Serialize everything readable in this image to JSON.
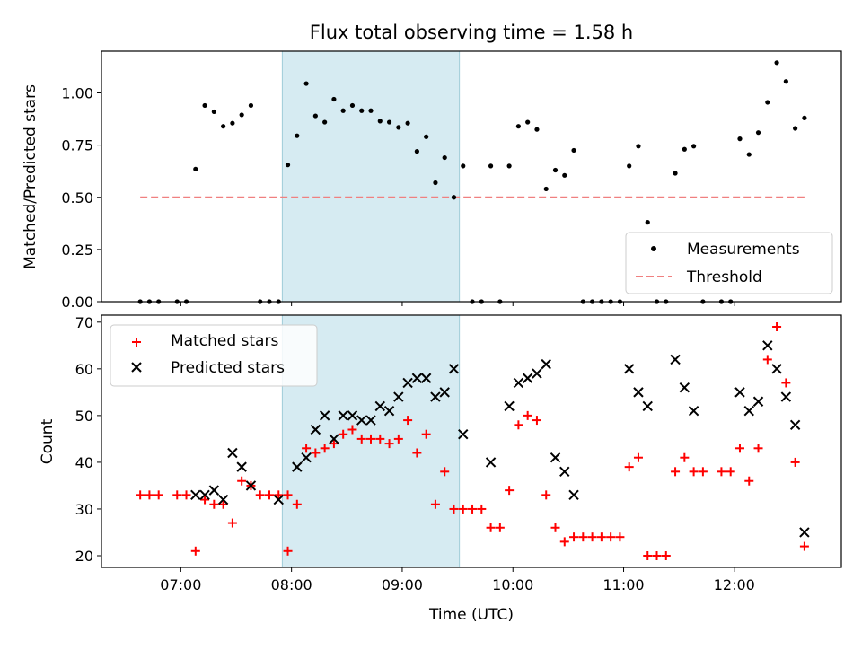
{
  "chart_data": [
    {
      "type": "scatter",
      "title": "Flux total observing time = 1.58 h",
      "xlabel": "",
      "ylabel": "Matched/Predicted stars",
      "ylim": [
        0,
        1.2
      ],
      "yticks": [
        "0.00",
        "0.25",
        "0.50",
        "0.75",
        "1.00"
      ],
      "shaded_band": [
        "07:55",
        "09:31"
      ],
      "threshold": 0.5,
      "legend": {
        "placement": "bottom-right",
        "entries": [
          "Measurements",
          "Threshold"
        ]
      },
      "series": [
        {
          "name": "Measurements",
          "color": "#000000",
          "points": [
            [
              "06:38",
              0.0
            ],
            [
              "06:43",
              0.0
            ],
            [
              "06:48",
              0.0
            ],
            [
              "06:58",
              0.0
            ],
            [
              "07:03",
              0.0
            ],
            [
              "07:08",
              0.635
            ],
            [
              "07:13",
              0.94
            ],
            [
              "07:18",
              0.91
            ],
            [
              "07:23",
              0.84
            ],
            [
              "07:28",
              0.855
            ],
            [
              "07:33",
              0.895
            ],
            [
              "07:38",
              0.94
            ],
            [
              "07:43",
              0.0
            ],
            [
              "07:48",
              0.0
            ],
            [
              "07:53",
              0.0
            ],
            [
              "07:58",
              0.655
            ],
            [
              "08:03",
              0.795
            ],
            [
              "08:08",
              1.045
            ],
            [
              "08:13",
              0.89
            ],
            [
              "08:18",
              0.86
            ],
            [
              "08:23",
              0.97
            ],
            [
              "08:28",
              0.915
            ],
            [
              "08:33",
              0.94
            ],
            [
              "08:38",
              0.915
            ],
            [
              "08:43",
              0.915
            ],
            [
              "08:48",
              0.865
            ],
            [
              "08:53",
              0.86
            ],
            [
              "08:58",
              0.835
            ],
            [
              "09:03",
              0.855
            ],
            [
              "09:08",
              0.72
            ],
            [
              "09:13",
              0.79
            ],
            [
              "09:18",
              0.57
            ],
            [
              "09:23",
              0.69
            ],
            [
              "09:28",
              0.5
            ],
            [
              "09:33",
              0.65
            ],
            [
              "09:38",
              0.0
            ],
            [
              "09:43",
              0.0
            ],
            [
              "09:48",
              0.65
            ],
            [
              "09:53",
              0.0
            ],
            [
              "09:58",
              0.65
            ],
            [
              "10:03",
              0.84
            ],
            [
              "10:08",
              0.86
            ],
            [
              "10:13",
              0.825
            ],
            [
              "10:18",
              0.54
            ],
            [
              "10:23",
              0.63
            ],
            [
              "10:28",
              0.605
            ],
            [
              "10:33",
              0.725
            ],
            [
              "10:38",
              0.0
            ],
            [
              "10:43",
              0.0
            ],
            [
              "10:48",
              0.0
            ],
            [
              "10:53",
              0.0
            ],
            [
              "10:58",
              0.0
            ],
            [
              "11:03",
              0.65
            ],
            [
              "11:08",
              0.745
            ],
            [
              "11:13",
              0.38
            ],
            [
              "11:18",
              0.0
            ],
            [
              "11:23",
              0.0
            ],
            [
              "11:28",
              0.615
            ],
            [
              "11:33",
              0.73
            ],
            [
              "11:38",
              0.745
            ],
            [
              "11:43",
              0.0
            ],
            [
              "11:53",
              0.0
            ],
            [
              "11:58",
              0.0
            ],
            [
              "12:03",
              0.78
            ],
            [
              "12:08",
              0.705
            ],
            [
              "12:13",
              0.81
            ],
            [
              "12:18",
              0.955
            ],
            [
              "12:23",
              1.145
            ],
            [
              "12:28",
              1.055
            ],
            [
              "12:33",
              0.83
            ],
            [
              "12:38",
              0.88
            ]
          ]
        },
        {
          "name": "Threshold",
          "color": "#f08080",
          "points": [
            [
              "06:38",
              0.5
            ],
            [
              "12:38",
              0.5
            ]
          ]
        }
      ]
    },
    {
      "type": "scatter",
      "title": "",
      "xlabel": "Time (UTC)",
      "ylabel": "Count",
      "ylim": [
        17.5,
        71.5
      ],
      "yticks": [
        "20",
        "30",
        "40",
        "50",
        "60",
        "70"
      ],
      "xlim": [
        "06:17",
        "12:58"
      ],
      "xticks": [
        "07:00",
        "08:00",
        "09:00",
        "10:00",
        "11:00",
        "12:00"
      ],
      "shaded_band": [
        "07:55",
        "09:31"
      ],
      "legend": {
        "placement": "top-left",
        "entries": [
          "Matched stars",
          "Predicted stars"
        ]
      },
      "series": [
        {
          "name": "Matched stars",
          "color": "#ff0000",
          "points": [
            [
              "06:38",
              33
            ],
            [
              "06:43",
              33
            ],
            [
              "06:48",
              33
            ],
            [
              "06:58",
              33
            ],
            [
              "07:03",
              33
            ],
            [
              "07:08",
              21
            ],
            [
              "07:13",
              32
            ],
            [
              "07:18",
              31
            ],
            [
              "07:23",
              31
            ],
            [
              "07:28",
              27
            ],
            [
              "07:33",
              36
            ],
            [
              "07:38",
              35
            ],
            [
              "07:43",
              33
            ],
            [
              "07:48",
              33
            ],
            [
              "07:53",
              33
            ],
            [
              "07:58",
              33
            ],
            [
              "07:58",
              21
            ],
            [
              "08:03",
              31
            ],
            [
              "08:08",
              43
            ],
            [
              "08:13",
              42
            ],
            [
              "08:18",
              43
            ],
            [
              "08:23",
              44
            ],
            [
              "08:28",
              46
            ],
            [
              "08:33",
              47
            ],
            [
              "08:38",
              45
            ],
            [
              "08:43",
              45
            ],
            [
              "08:48",
              45
            ],
            [
              "08:53",
              44
            ],
            [
              "08:58",
              45
            ],
            [
              "09:03",
              49
            ],
            [
              "09:08",
              42
            ],
            [
              "09:13",
              46
            ],
            [
              "09:18",
              31
            ],
            [
              "09:23",
              38
            ],
            [
              "09:28",
              30
            ],
            [
              "09:33",
              30
            ],
            [
              "09:38",
              30
            ],
            [
              "09:43",
              30
            ],
            [
              "09:48",
              26
            ],
            [
              "09:53",
              26
            ],
            [
              "09:58",
              34
            ],
            [
              "10:03",
              48
            ],
            [
              "10:08",
              50
            ],
            [
              "10:13",
              49
            ],
            [
              "10:18",
              33
            ],
            [
              "10:23",
              26
            ],
            [
              "10:28",
              23
            ],
            [
              "10:33",
              24
            ],
            [
              "10:38",
              24
            ],
            [
              "10:43",
              24
            ],
            [
              "10:48",
              24
            ],
            [
              "10:53",
              24
            ],
            [
              "10:58",
              24
            ],
            [
              "11:03",
              39
            ],
            [
              "11:08",
              41
            ],
            [
              "11:13",
              20
            ],
            [
              "11:18",
              20
            ],
            [
              "11:23",
              20
            ],
            [
              "11:28",
              38
            ],
            [
              "11:33",
              41
            ],
            [
              "11:38",
              38
            ],
            [
              "11:43",
              38
            ],
            [
              "11:53",
              38
            ],
            [
              "11:58",
              38
            ],
            [
              "12:03",
              43
            ],
            [
              "12:08",
              36
            ],
            [
              "12:13",
              43
            ],
            [
              "12:18",
              62
            ],
            [
              "12:23",
              69
            ],
            [
              "12:28",
              57
            ],
            [
              "12:33",
              40
            ],
            [
              "12:38",
              22
            ]
          ]
        },
        {
          "name": "Predicted stars",
          "color": "#000000",
          "points": [
            [
              "07:08",
              33
            ],
            [
              "07:13",
              33
            ],
            [
              "07:18",
              34
            ],
            [
              "07:23",
              32
            ],
            [
              "07:28",
              42
            ],
            [
              "07:33",
              39
            ],
            [
              "07:38",
              35
            ],
            [
              "07:53",
              32
            ],
            [
              "08:03",
              39
            ],
            [
              "08:08",
              41
            ],
            [
              "08:13",
              47
            ],
            [
              "08:18",
              50
            ],
            [
              "08:23",
              45
            ],
            [
              "08:28",
              50
            ],
            [
              "08:33",
              50
            ],
            [
              "08:38",
              49
            ],
            [
              "08:43",
              49
            ],
            [
              "08:48",
              52
            ],
            [
              "08:53",
              51
            ],
            [
              "08:58",
              54
            ],
            [
              "09:03",
              57
            ],
            [
              "09:08",
              58
            ],
            [
              "09:13",
              58
            ],
            [
              "09:18",
              54
            ],
            [
              "09:23",
              55
            ],
            [
              "09:28",
              60
            ],
            [
              "09:33",
              46
            ],
            [
              "09:48",
              40
            ],
            [
              "09:58",
              52
            ],
            [
              "10:03",
              57
            ],
            [
              "10:08",
              58
            ],
            [
              "10:13",
              59
            ],
            [
              "10:18",
              61
            ],
            [
              "10:23",
              41
            ],
            [
              "10:28",
              38
            ],
            [
              "10:33",
              33
            ],
            [
              "11:03",
              60
            ],
            [
              "11:08",
              55
            ],
            [
              "11:13",
              52
            ],
            [
              "11:28",
              62
            ],
            [
              "11:33",
              56
            ],
            [
              "11:38",
              51
            ],
            [
              "12:03",
              55
            ],
            [
              "12:08",
              51
            ],
            [
              "12:13",
              53
            ],
            [
              "12:18",
              65
            ],
            [
              "12:23",
              60
            ],
            [
              "12:28",
              54
            ],
            [
              "12:33",
              48
            ],
            [
              "12:38",
              25
            ]
          ]
        }
      ]
    }
  ]
}
